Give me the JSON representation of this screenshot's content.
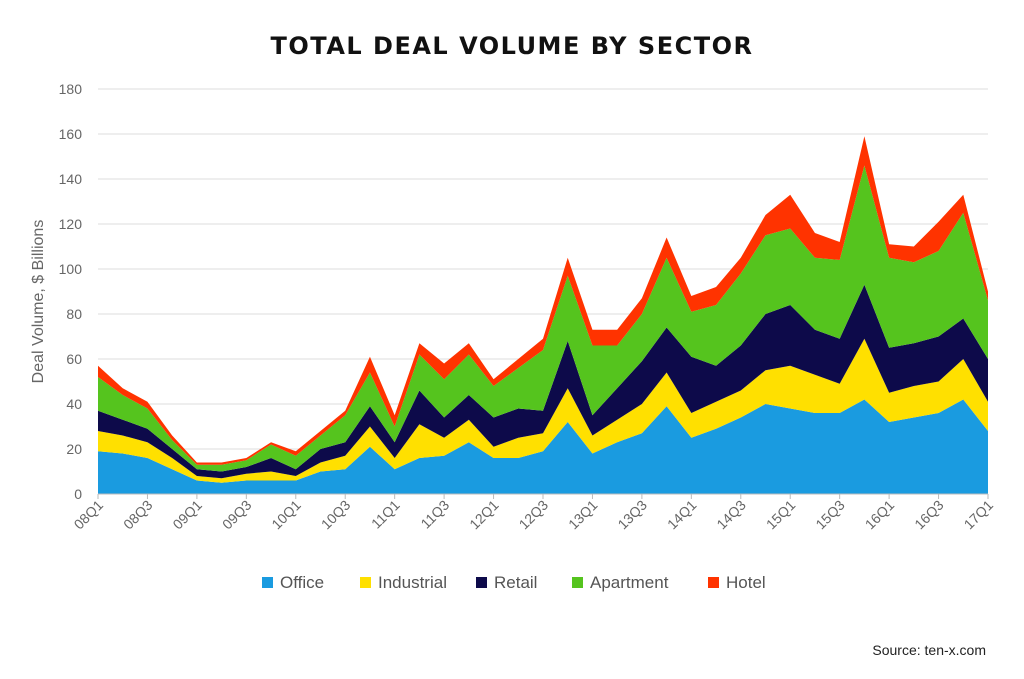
{
  "chart_data": {
    "type": "area",
    "stacked": true,
    "title": "TOTAL DEAL VOLUME BY SECTOR",
    "xlabel": "",
    "ylabel": "Deal Volume, $ Billions",
    "ylim": [
      0,
      180
    ],
    "yticks": [
      0,
      20,
      40,
      60,
      80,
      100,
      120,
      140,
      160,
      180
    ],
    "grid": true,
    "legend": "bottom",
    "categories": [
      "08Q1",
      "08Q2",
      "08Q3",
      "08Q4",
      "09Q1",
      "09Q2",
      "09Q3",
      "09Q4",
      "10Q1",
      "10Q2",
      "10Q3",
      "10Q4",
      "11Q1",
      "11Q2",
      "11Q3",
      "11Q4",
      "12Q1",
      "12Q2",
      "12Q3",
      "12Q4",
      "13Q1",
      "13Q2",
      "13Q3",
      "13Q4",
      "14Q1",
      "14Q2",
      "14Q3",
      "14Q4",
      "15Q1",
      "15Q2",
      "15Q3",
      "15Q4",
      "16Q1",
      "16Q2",
      "16Q3",
      "16Q4",
      "17Q1"
    ],
    "xtick_labels": [
      "08Q1",
      "08Q3",
      "09Q1",
      "09Q3",
      "10Q1",
      "10Q3",
      "11Q1",
      "11Q3",
      "12Q1",
      "12Q3",
      "13Q1",
      "13Q3",
      "14Q1",
      "14Q3",
      "15Q1",
      "15Q3",
      "16Q1",
      "16Q3",
      "17Q1"
    ],
    "series": [
      {
        "name": "Office",
        "color": "#1a9be0",
        "values": [
          19,
          18,
          16,
          11,
          6,
          5,
          6,
          6,
          6,
          10,
          11,
          21,
          11,
          16,
          17,
          23,
          16,
          16,
          19,
          32,
          18,
          23,
          27,
          39,
          25,
          29,
          34,
          40,
          38,
          36,
          36,
          42,
          32,
          34,
          36,
          42,
          28
        ]
      },
      {
        "name": "Industrial",
        "color": "#ffe000",
        "values": [
          9,
          8,
          7,
          5,
          2,
          2,
          3,
          4,
          2,
          4,
          6,
          9,
          5,
          15,
          8,
          10,
          5,
          9,
          8,
          15,
          8,
          10,
          13,
          15,
          11,
          12,
          12,
          15,
          19,
          17,
          13,
          27,
          13,
          14,
          14,
          18,
          13
        ]
      },
      {
        "name": "Retail",
        "color": "#0d0a4a",
        "values": [
          9,
          7,
          6,
          4,
          3,
          3,
          3,
          6,
          3,
          6,
          6,
          9,
          7,
          15,
          9,
          11,
          13,
          13,
          10,
          21,
          9,
          14,
          19,
          20,
          25,
          16,
          20,
          25,
          27,
          20,
          20,
          24,
          20,
          19,
          20,
          18,
          19
        ]
      },
      {
        "name": "Apartment",
        "color": "#55c41e",
        "values": [
          15,
          11,
          9,
          4,
          2,
          3,
          3,
          6,
          6,
          6,
          12,
          15,
          7,
          16,
          17,
          18,
          14,
          18,
          27,
          29,
          31,
          19,
          21,
          31,
          20,
          27,
          32,
          35,
          34,
          32,
          35,
          53,
          40,
          36,
          38,
          47,
          26
        ]
      },
      {
        "name": "Hotel",
        "color": "#ff3300",
        "values": [
          5,
          3,
          3,
          2,
          1,
          1,
          1,
          1,
          2,
          2,
          2,
          7,
          5,
          5,
          7,
          5,
          3,
          4,
          5,
          8,
          7,
          7,
          7,
          9,
          7,
          8,
          7,
          9,
          15,
          11,
          8,
          13,
          6,
          7,
          13,
          8,
          4
        ]
      }
    ]
  },
  "source": "Source: ten-x.com"
}
